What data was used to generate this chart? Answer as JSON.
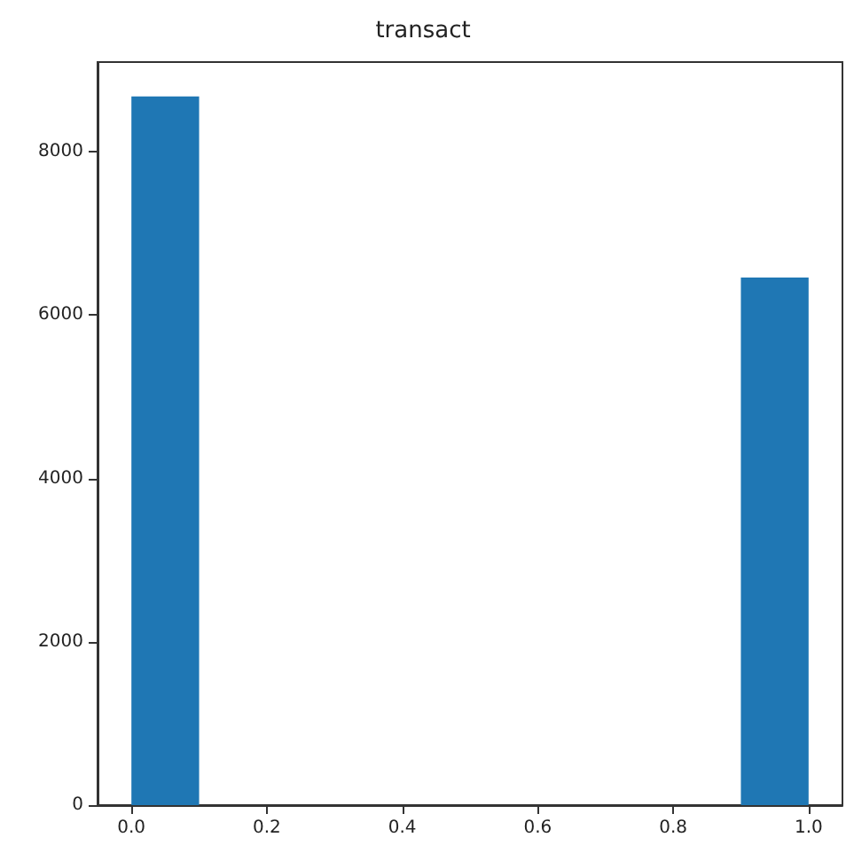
{
  "chart_data": {
    "type": "histogram",
    "title": "transact",
    "bins": [
      0,
      0.1,
      0.2,
      0.3,
      0.4,
      0.5,
      0.6,
      0.7,
      0.8,
      0.9,
      1.0
    ],
    "values": [
      8680,
      0,
      0,
      0,
      0,
      0,
      0,
      0,
      0,
      6460
    ],
    "color": "#1f77b4",
    "xlim": [
      -0.05,
      1.05
    ],
    "xticks": [
      {
        "value": 0,
        "label": "0.0"
      },
      {
        "value": 0.2,
        "label": "0.2"
      },
      {
        "value": 0.4,
        "label": "0.4"
      },
      {
        "value": 0.6,
        "label": "0.6"
      },
      {
        "value": 0.8,
        "label": "0.8"
      },
      {
        "value": 1.0,
        "label": "1.0"
      }
    ],
    "ylim": [
      0,
      9100
    ],
    "yticks": [
      0,
      2000,
      4000,
      6000,
      8000
    ],
    "grid": false
  }
}
